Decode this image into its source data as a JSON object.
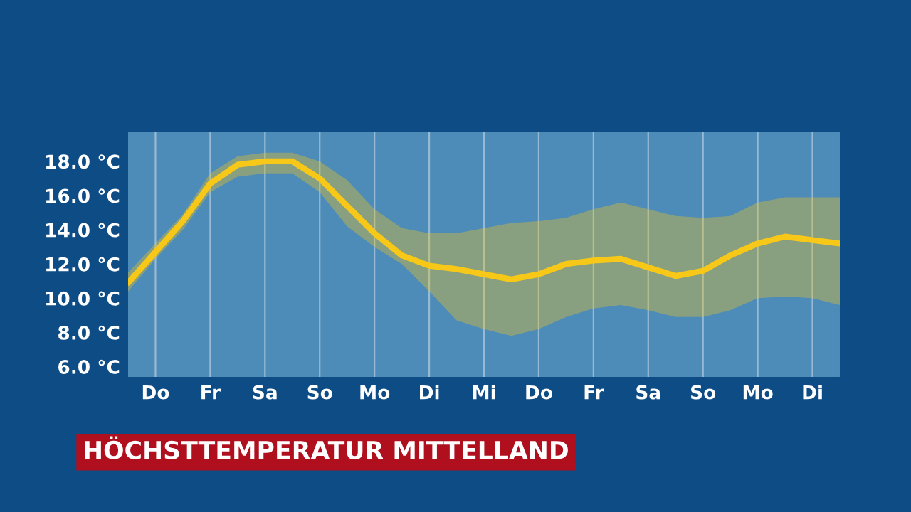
{
  "chart_data": {
    "type": "line",
    "title": "HÖCHSTTEMPERATUR MITTELLAND",
    "categories": [
      null,
      "Do",
      null,
      "Fr",
      null,
      "Sa",
      null,
      "So",
      null,
      "Mo",
      null,
      "Di",
      null,
      "Mi",
      null,
      "Do",
      null,
      "Fr",
      null,
      "Sa",
      null,
      "So",
      null,
      "Mo",
      null,
      "Di",
      null
    ],
    "ylim": [
      5.4,
      19.7
    ],
    "yticks": [
      {
        "value": 6,
        "label": "6.0 °C"
      },
      {
        "value": 8,
        "label": "8.0 °C"
      },
      {
        "value": 10,
        "label": "10.0 °C"
      },
      {
        "value": 12,
        "label": "12.0 °C"
      },
      {
        "value": 14,
        "label": "14.0 °C"
      },
      {
        "value": 16,
        "label": "16.0 °C"
      },
      {
        "value": 18,
        "label": "18.0 °C"
      }
    ],
    "grid": "x",
    "marker": "none",
    "line_style": "solid",
    "series": [
      {
        "color": "#f7c818",
        "values": [
          10.9,
          12.7,
          14.5,
          16.7,
          17.8,
          18.0,
          18.0,
          17.0,
          15.4,
          13.8,
          12.5,
          11.9,
          11.7,
          11.4,
          11.1,
          11.4,
          12.0,
          12.2,
          12.3,
          11.8,
          11.3,
          11.6,
          12.5,
          13.2,
          13.6,
          13.4,
          13.2
        ],
        "upper": [
          11.5,
          13.2,
          14.9,
          17.3,
          18.3,
          18.5,
          18.5,
          18.0,
          16.9,
          15.2,
          14.1,
          13.8,
          13.8,
          14.1,
          14.4,
          14.5,
          14.7,
          15.2,
          15.6,
          15.2,
          14.8,
          14.7,
          14.8,
          15.6,
          15.9,
          15.9,
          15.9
        ],
        "lower": [
          10.4,
          12.3,
          14.0,
          16.2,
          17.1,
          17.3,
          17.3,
          16.2,
          14.2,
          13.0,
          12.0,
          10.4,
          8.7,
          8.2,
          7.8,
          8.2,
          8.9,
          9.4,
          9.6,
          9.3,
          8.9,
          8.9,
          9.3,
          10.0,
          10.1,
          10.0,
          9.6
        ]
      }
    ]
  }
}
